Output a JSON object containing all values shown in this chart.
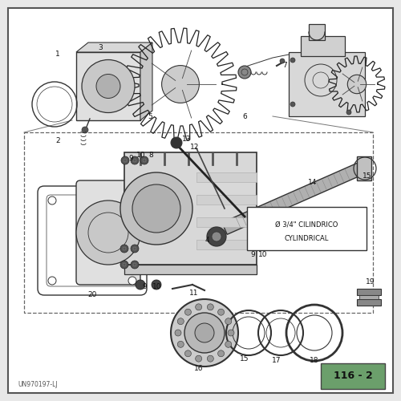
{
  "bg_color": "#e8e8e8",
  "page_bg": "#f5f5f2",
  "border_color": "#333333",
  "title_box_color": "#6b9f6b",
  "title_text": "116 - 2",
  "watermark": "UN970197-LJ",
  "annotation_line1": "Ø 3/4\" CILINDRICO",
  "annotation_line2": "CYLINDRICAL",
  "figure_size": [
    5.0,
    5.0
  ],
  "dpi": 100
}
